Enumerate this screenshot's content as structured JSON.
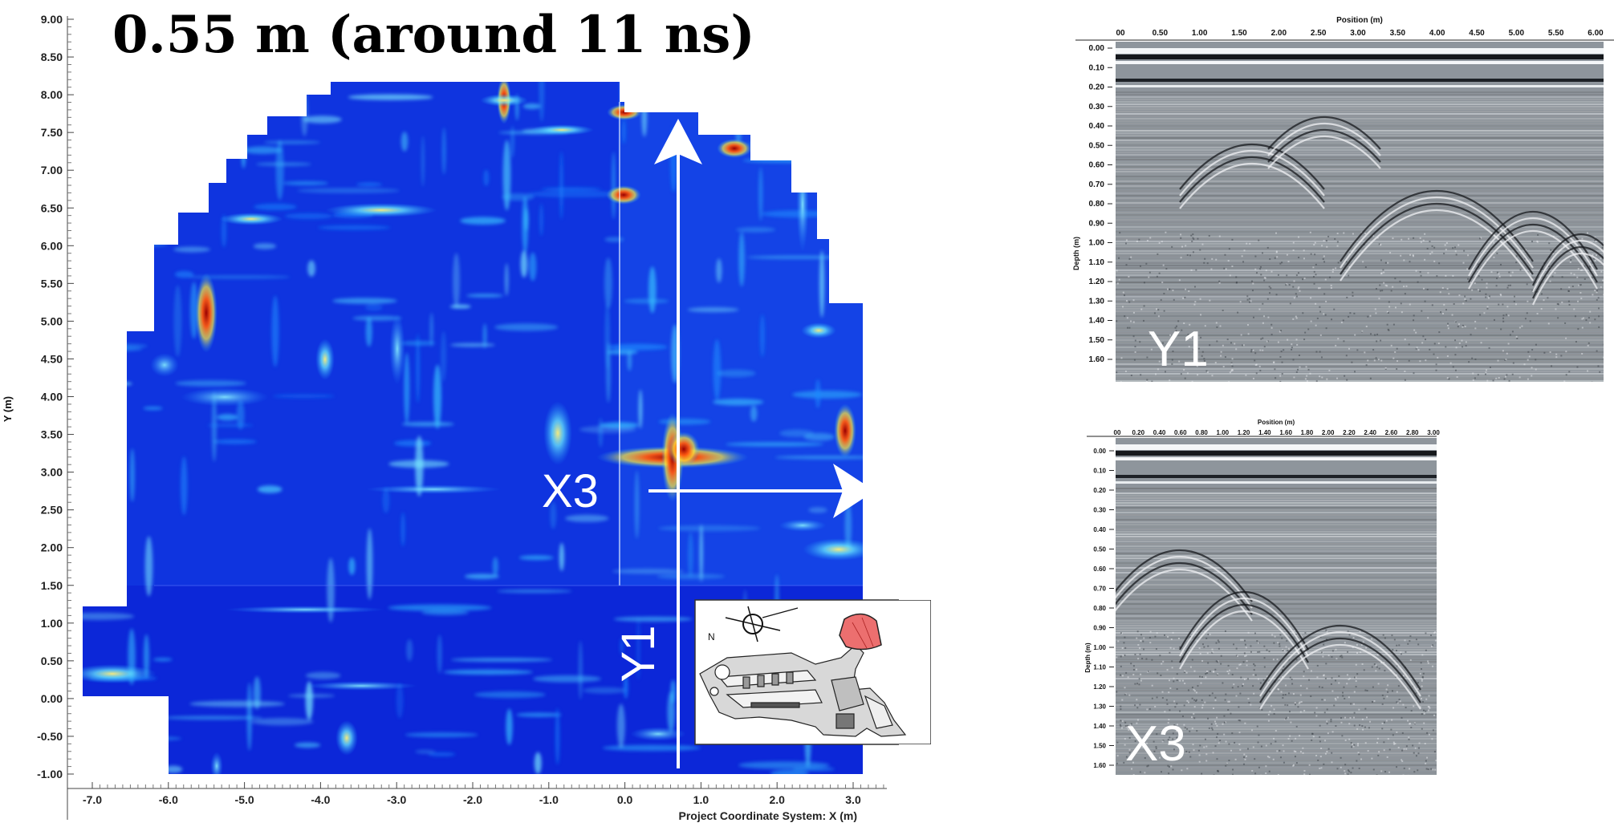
{
  "map": {
    "title": "0.55 m (around 11 ns)",
    "y_axis_title": "Y (m)",
    "x_axis_title": "Project Coordinate System: X (m)",
    "y_ticks": [
      "9.00",
      "8.50",
      "8.00",
      "7.50",
      "7.00",
      "6.50",
      "6.00",
      "5.50",
      "5.00",
      "4.50",
      "4.00",
      "3.50",
      "3.00",
      "2.50",
      "2.00",
      "1.50",
      "1.00",
      "0.50",
      "0.00",
      "-0.50",
      "-1.00"
    ],
    "x_ticks": [
      "-7.0",
      "-6.0",
      "-5.0",
      "-4.0",
      "-3.0",
      "-2.0",
      "-1.0",
      "0.0",
      "1.0",
      "2.0",
      "3.0"
    ],
    "profile_labels": {
      "x3": "X3",
      "y1": "Y1"
    },
    "inset": {
      "north_label": "N"
    },
    "colors": {
      "low": "#0a1fd0",
      "mid": "#21a7ff",
      "high": "#ffe93a",
      "peak": "#b50808"
    }
  },
  "radargram_y1": {
    "label": "Y1",
    "x_axis_title": "Position (m)",
    "y_axis_title": "Depth (m)",
    "x_ticks": [
      "00",
      "0.50",
      "1.00",
      "1.50",
      "2.00",
      "2.50",
      "3.00",
      "3.50",
      "4.00",
      "4.50",
      "5.00",
      "5.50",
      "6.00"
    ],
    "y_ticks": [
      "0.00",
      "0.10",
      "0.20",
      "0.30",
      "0.40",
      "0.50",
      "0.60",
      "0.70",
      "0.80",
      "0.90",
      "1.00",
      "1.10",
      "1.20",
      "1.30",
      "1.40",
      "1.50",
      "1.60"
    ]
  },
  "radargram_x3": {
    "label": "X3",
    "x_axis_title": "Position (m)",
    "y_axis_title": "Depth (m)",
    "x_ticks": [
      "00",
      "0.20",
      "0.40",
      "0.60",
      "0.80",
      "1.00",
      "1.20",
      "1.40",
      "1.60",
      "1.80",
      "2.00",
      "2.20",
      "2.40",
      "2.60",
      "2.80",
      "3.00"
    ],
    "y_ticks": [
      "0.00",
      "0.10",
      "0.20",
      "0.30",
      "0.40",
      "0.50",
      "0.60",
      "0.70",
      "0.80",
      "0.90",
      "1.00",
      "1.10",
      "1.20",
      "1.30",
      "1.40",
      "1.50",
      "1.60"
    ]
  }
}
